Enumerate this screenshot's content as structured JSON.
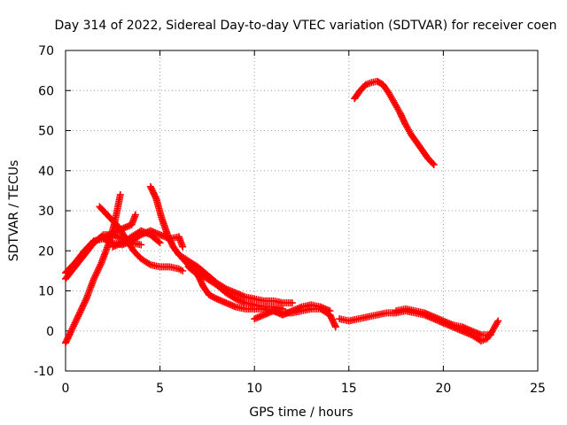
{
  "chart_data": {
    "type": "scatter",
    "title": "Day 314 of 2022, Sidereal Day-to-day VTEC variation (SDTVAR) for receiver coen",
    "xlabel": "GPS time / hours",
    "ylabel": "SDTVAR / TECUs",
    "xlim": [
      0,
      25
    ],
    "ylim": [
      -10,
      70
    ],
    "x_ticks": [
      0,
      5,
      10,
      15,
      20,
      25
    ],
    "y_ticks": [
      -10,
      0,
      10,
      20,
      30,
      40,
      50,
      60,
      70
    ],
    "grid": true,
    "legend": "none",
    "marker": "+",
    "color": "#ff0000",
    "series": [
      {
        "name": "track-1",
        "points": [
          [
            0.0,
            -3
          ],
          [
            0.3,
            0
          ],
          [
            0.7,
            4
          ],
          [
            1.1,
            8
          ],
          [
            1.5,
            13
          ],
          [
            1.9,
            17
          ],
          [
            2.3,
            22
          ],
          [
            2.6,
            27
          ],
          [
            2.9,
            34
          ]
        ]
      },
      {
        "name": "track-2",
        "points": [
          [
            0.0,
            13
          ],
          [
            0.5,
            16
          ],
          [
            1.0,
            19
          ],
          [
            1.5,
            22
          ],
          [
            2.0,
            24
          ],
          [
            2.5,
            24
          ],
          [
            3.0,
            23
          ],
          [
            3.5,
            22
          ],
          [
            4.0,
            21.5
          ]
        ]
      },
      {
        "name": "track-3",
        "points": [
          [
            0.0,
            14.5
          ],
          [
            0.5,
            17
          ],
          [
            1.0,
            20
          ],
          [
            1.5,
            22.5
          ],
          [
            2.0,
            23
          ],
          [
            2.5,
            22
          ],
          [
            3.0,
            21.5
          ],
          [
            3.5,
            22.5
          ],
          [
            4.0,
            24
          ],
          [
            4.5,
            25
          ],
          [
            5.0,
            24
          ],
          [
            5.5,
            23
          ],
          [
            6.0,
            23.5
          ],
          [
            6.2,
            21
          ]
        ]
      },
      {
        "name": "track-4",
        "points": [
          [
            1.8,
            31
          ],
          [
            2.3,
            28.5
          ],
          [
            2.8,
            26
          ],
          [
            3.2,
            23
          ],
          [
            3.6,
            20
          ],
          [
            4.0,
            18
          ],
          [
            4.5,
            16.5
          ],
          [
            5.0,
            16
          ],
          [
            5.5,
            16
          ],
          [
            6.0,
            15.5
          ],
          [
            6.2,
            15
          ]
        ]
      },
      {
        "name": "track-5",
        "points": [
          [
            2.0,
            23
          ],
          [
            2.5,
            24.5
          ],
          [
            3.0,
            25.5
          ],
          [
            3.5,
            26.5
          ],
          [
            3.7,
            29
          ]
        ]
      },
      {
        "name": "track-6",
        "points": [
          [
            2.5,
            21
          ],
          [
            3.0,
            22
          ],
          [
            3.5,
            23.5
          ],
          [
            4.0,
            25
          ],
          [
            4.5,
            24
          ],
          [
            5.0,
            22
          ]
        ]
      },
      {
        "name": "track-7",
        "points": [
          [
            4.5,
            36
          ],
          [
            4.8,
            33
          ],
          [
            5.1,
            28
          ],
          [
            5.4,
            24
          ],
          [
            5.7,
            21
          ],
          [
            6.0,
            19
          ],
          [
            6.5,
            17.5
          ],
          [
            7.0,
            16
          ],
          [
            7.5,
            14
          ],
          [
            8.0,
            12
          ],
          [
            8.5,
            10.5
          ],
          [
            9.0,
            9.5
          ],
          [
            9.5,
            8.5
          ],
          [
            10.0,
            8
          ],
          [
            10.5,
            7.5
          ],
          [
            11.0,
            7.5
          ],
          [
            11.5,
            7
          ],
          [
            12.0,
            7
          ]
        ]
      },
      {
        "name": "track-8",
        "points": [
          [
            6.2,
            18
          ],
          [
            6.6,
            16
          ],
          [
            7.0,
            14.5
          ],
          [
            7.5,
            13
          ],
          [
            8.0,
            11.5
          ],
          [
            8.5,
            9.5
          ],
          [
            9.0,
            8
          ],
          [
            9.5,
            7
          ],
          [
            10.0,
            6.5
          ],
          [
            10.5,
            6
          ],
          [
            11.0,
            6
          ],
          [
            11.5,
            5.5
          ]
        ]
      },
      {
        "name": "track-9",
        "points": [
          [
            6.5,
            16
          ],
          [
            7.0,
            14
          ],
          [
            7.3,
            11
          ],
          [
            7.6,
            9
          ],
          [
            8.0,
            8
          ],
          [
            8.5,
            7
          ],
          [
            9.0,
            6
          ],
          [
            9.5,
            5.5
          ],
          [
            10.0,
            5.5
          ],
          [
            10.5,
            5.5
          ],
          [
            11.0,
            5
          ],
          [
            11.5,
            4.5
          ],
          [
            12.0,
            4.5
          ],
          [
            12.5,
            5
          ],
          [
            13.0,
            5.5
          ],
          [
            13.5,
            5.5
          ],
          [
            14.0,
            4
          ],
          [
            14.3,
            1
          ]
        ]
      },
      {
        "name": "track-10",
        "points": [
          [
            10.0,
            3
          ],
          [
            10.5,
            4
          ],
          [
            11.0,
            5
          ],
          [
            11.5,
            4
          ],
          [
            12.0,
            5
          ],
          [
            12.5,
            6
          ],
          [
            13.0,
            6.5
          ],
          [
            13.5,
            6
          ],
          [
            14.0,
            5
          ]
        ]
      },
      {
        "name": "track-11",
        "points": [
          [
            14.5,
            3
          ],
          [
            15.0,
            2.5
          ],
          [
            15.5,
            3
          ],
          [
            16.0,
            3.5
          ],
          [
            16.5,
            4
          ],
          [
            17.0,
            4.5
          ],
          [
            17.5,
            4.5
          ],
          [
            18.0,
            5
          ],
          [
            18.5,
            4.5
          ],
          [
            19.0,
            4
          ],
          [
            19.5,
            3
          ],
          [
            20.0,
            2
          ],
          [
            20.5,
            1
          ],
          [
            21.0,
            0
          ],
          [
            21.5,
            -1
          ],
          [
            22.0,
            -2.5
          ],
          [
            22.3,
            -2
          ],
          [
            22.6,
            0
          ],
          [
            22.9,
            2.5
          ]
        ]
      },
      {
        "name": "track-12",
        "points": [
          [
            17.5,
            5
          ],
          [
            18.0,
            5.5
          ],
          [
            18.5,
            5
          ],
          [
            19.0,
            4.5
          ],
          [
            19.5,
            3.5
          ],
          [
            20.0,
            2.5
          ],
          [
            20.5,
            1.5
          ],
          [
            21.0,
            1
          ],
          [
            21.5,
            0
          ],
          [
            22.0,
            -1
          ],
          [
            22.5,
            -1
          ]
        ]
      },
      {
        "name": "track-13",
        "points": [
          [
            15.3,
            58
          ],
          [
            15.6,
            60
          ],
          [
            15.9,
            61.5
          ],
          [
            16.2,
            62
          ],
          [
            16.5,
            62.3
          ],
          [
            16.8,
            61.5
          ],
          [
            17.1,
            59.5
          ],
          [
            17.4,
            57
          ],
          [
            17.7,
            54.5
          ],
          [
            18.0,
            51.5
          ],
          [
            18.3,
            49
          ],
          [
            18.6,
            47
          ],
          [
            18.9,
            45
          ],
          [
            19.2,
            43
          ],
          [
            19.5,
            41.5
          ]
        ]
      }
    ]
  }
}
